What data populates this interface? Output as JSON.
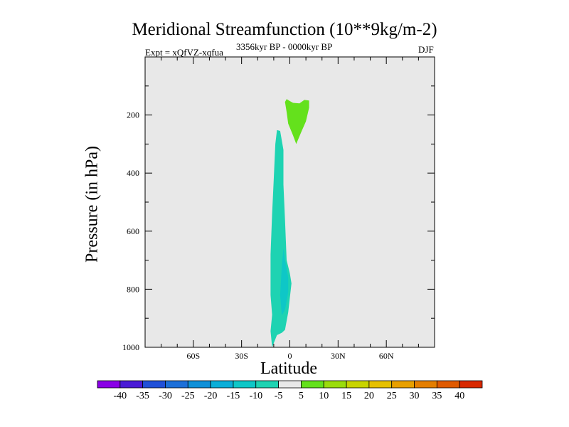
{
  "chart_data": {
    "type": "contour",
    "title": "Meridional Streamfunction (10**9kg/m-2)",
    "subtitle_left": "Expt = xQfVZ-xqfua",
    "subtitle_center": "3356kyr BP - 0000kyr BP",
    "subtitle_right": "DJF",
    "xlabel": "Latitude",
    "ylabel": "Pressure (in hPa)",
    "xlim": [
      -90,
      90
    ],
    "ylim": [
      1000,
      0
    ],
    "x_ticks": [
      {
        "value": -60,
        "label": "60S"
      },
      {
        "value": -30,
        "label": "30S"
      },
      {
        "value": 0,
        "label": "0"
      },
      {
        "value": 30,
        "label": "30N"
      },
      {
        "value": 60,
        "label": "60N"
      }
    ],
    "y_ticks": [
      {
        "value": 200,
        "label": "200"
      },
      {
        "value": 400,
        "label": "400"
      },
      {
        "value": 600,
        "label": "600"
      },
      {
        "value": 800,
        "label": "800"
      },
      {
        "value": 1000,
        "label": "1000"
      }
    ],
    "background_color": "#e8e8e8",
    "regions": [
      {
        "name": "negative-cell",
        "level": "-10 to -5",
        "color": "#1ed3b2",
        "polygon": [
          [
            -11,
            1000
          ],
          [
            -12,
            944
          ],
          [
            -11,
            888
          ],
          [
            -12,
            820
          ],
          [
            -12,
            680
          ],
          [
            -11,
            540
          ],
          [
            -10,
            420
          ],
          [
            -9,
            300
          ],
          [
            -8,
            252
          ],
          [
            -6,
            255
          ],
          [
            -4,
            320
          ],
          [
            -4,
            440
          ],
          [
            -3,
            560
          ],
          [
            -2,
            700
          ],
          [
            0,
            745
          ],
          [
            1,
            780
          ],
          [
            0,
            830
          ],
          [
            -1,
            880
          ],
          [
            -3,
            940
          ],
          [
            -5,
            950
          ],
          [
            -8,
            958
          ]
        ]
      },
      {
        "name": "negative-core",
        "level": "-15 to -10",
        "color": "#0ec7c7",
        "polygon": [
          [
            -5,
            890
          ],
          [
            -6,
            820
          ],
          [
            -5,
            720
          ],
          [
            -4,
            660
          ],
          [
            -3,
            700
          ],
          [
            -1,
            760
          ],
          [
            -1,
            810
          ],
          [
            -3,
            870
          ]
        ]
      },
      {
        "name": "positive-cell",
        "level": "5 to 10",
        "color": "#64e11c",
        "polygon": [
          [
            -2,
            145
          ],
          [
            0,
            152
          ],
          [
            2,
            158
          ],
          [
            6,
            160
          ],
          [
            9,
            148
          ],
          [
            12,
            150
          ],
          [
            12,
            175
          ],
          [
            10,
            222
          ],
          [
            7,
            260
          ],
          [
            4,
            300
          ],
          [
            2,
            270
          ],
          [
            -1,
            230
          ],
          [
            -2,
            190
          ],
          [
            -3,
            155
          ]
        ]
      }
    ],
    "colorbar": {
      "labels": [
        "-40",
        "-35",
        "-30",
        "-25",
        "-20",
        "-15",
        "-10",
        "-5",
        "5",
        "10",
        "15",
        "20",
        "25",
        "30",
        "35",
        "40"
      ],
      "colors": [
        "#8a00e6",
        "#4a1bd6",
        "#2050d8",
        "#1c6fd8",
        "#0f90d8",
        "#0aaed8",
        "#0ec7c7",
        "#1ed3b2",
        "#e8e8e8",
        "#64e11c",
        "#9adc0c",
        "#c8d400",
        "#e6c000",
        "#e8a000",
        "#e47e00",
        "#e05a00",
        "#d82800"
      ]
    }
  }
}
